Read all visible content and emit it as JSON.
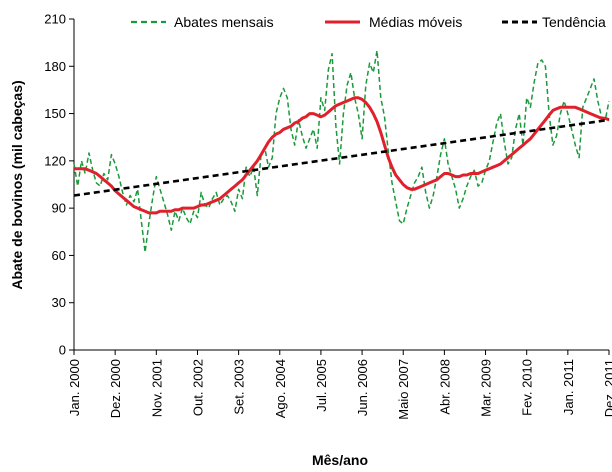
{
  "chart_data": {
    "type": "line",
    "title": "",
    "xlabel": "Mês/ano",
    "ylabel": "Abate de bovinos (mil cabeças)",
    "ylim": [
      0,
      210
    ],
    "yticks": [
      0,
      30,
      60,
      90,
      120,
      150,
      180,
      210
    ],
    "xticks": [
      {
        "label": "Jan. 2000",
        "index": 0
      },
      {
        "label": "Dez. 2000",
        "index": 11
      },
      {
        "label": "Nov. 2001",
        "index": 22
      },
      {
        "label": "Out. 2002",
        "index": 33
      },
      {
        "label": "Set. 2003",
        "index": 44
      },
      {
        "label": "Ago. 2004",
        "index": 55
      },
      {
        "label": "Jul. 2005",
        "index": 66
      },
      {
        "label": "Jun. 2006",
        "index": 77
      },
      {
        "label": "Maio 2007",
        "index": 88
      },
      {
        "label": "Abr. 2008",
        "index": 99
      },
      {
        "label": "Mar. 2009",
        "index": 110
      },
      {
        "label": "Fev. 2010",
        "index": 121
      },
      {
        "label": "Jan. 2011",
        "index": 132
      },
      {
        "label": "Dez. 2011",
        "index": 143
      }
    ],
    "grid": false,
    "legend_position": "top",
    "series": [
      {
        "name": "Abates mensais",
        "style": "dashed",
        "color": "#1a9a3a",
        "values": [
          118,
          104,
          120,
          112,
          125,
          114,
          106,
          104,
          112,
          108,
          124,
          118,
          110,
          100,
          92,
          98,
          94,
          102,
          82,
          62,
          80,
          96,
          110,
          102,
          94,
          86,
          76,
          88,
          82,
          90,
          84,
          80,
          88,
          84,
          100,
          92,
          90,
          96,
          100,
          92,
          96,
          98,
          94,
          88,
          102,
          96,
          116,
          110,
          116,
          98,
          124,
          128,
          116,
          122,
          150,
          160,
          166,
          160,
          140,
          130,
          146,
          136,
          128,
          134,
          140,
          128,
          160,
          152,
          178,
          188,
          142,
          118,
          150,
          168,
          176,
          160,
          150,
          134,
          168,
          182,
          176,
          190,
          160,
          148,
          126,
          106,
          94,
          82,
          80,
          90,
          98,
          106,
          110,
          116,
          100,
          90,
          98,
          110,
          124,
          134,
          118,
          110,
          102,
          90,
          96,
          104,
          110,
          114,
          104,
          106,
          114,
          120,
          132,
          144,
          150,
          132,
          118,
          122,
          140,
          150,
          130,
          160,
          154,
          170,
          182,
          184,
          180,
          150,
          130,
          136,
          150,
          158,
          150,
          140,
          130,
          122,
          154,
          160,
          166,
          172,
          158,
          148,
          146,
          158
        ]
      },
      {
        "name": "Médias móveis",
        "style": "solid",
        "color": "#e0202a",
        "values": [
          115,
          115,
          115,
          115,
          114,
          113,
          112,
          110,
          108,
          106,
          104,
          101,
          99,
          97,
          95,
          93,
          91,
          90,
          89,
          88,
          87,
          87,
          87,
          88,
          88,
          88,
          88,
          89,
          89,
          90,
          90,
          90,
          90,
          91,
          92,
          92,
          93,
          94,
          95,
          96,
          98,
          100,
          102,
          104,
          106,
          108,
          111,
          114,
          117,
          120,
          124,
          128,
          132,
          135,
          137,
          138,
          140,
          141,
          142,
          144,
          145,
          147,
          148,
          150,
          150,
          149,
          148,
          149,
          151,
          153,
          155,
          156,
          157,
          158,
          159,
          160,
          160,
          159,
          157,
          154,
          150,
          145,
          138,
          130,
          122,
          116,
          111,
          108,
          105,
          103,
          102,
          102,
          103,
          104,
          105,
          106,
          107,
          108,
          110,
          112,
          112,
          111,
          110,
          110,
          111,
          111,
          112,
          112,
          112,
          113,
          114,
          115,
          116,
          117,
          118,
          120,
          122,
          124,
          126,
          128,
          130,
          132,
          134,
          137,
          140,
          143,
          146,
          149,
          152,
          153,
          154,
          154,
          154,
          154,
          154,
          153,
          152,
          151,
          150,
          149,
          148,
          147,
          147,
          146
        ]
      },
      {
        "name": "Tendência",
        "style": "dashed",
        "color": "#000000",
        "values": [
          98,
          146
        ]
      }
    ]
  }
}
